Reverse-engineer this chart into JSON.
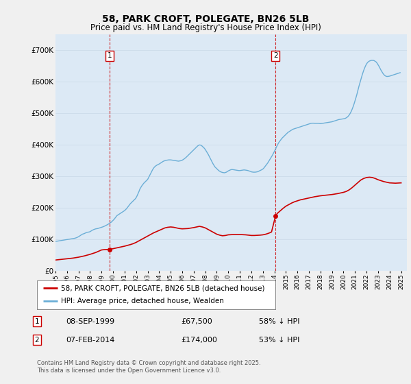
{
  "title": "58, PARK CROFT, POLEGATE, BN26 5LB",
  "subtitle": "Price paid vs. HM Land Registry's House Price Index (HPI)",
  "xlim_start": 1995.0,
  "xlim_end": 2025.5,
  "ylim_min": 0,
  "ylim_max": 750000,
  "background_color": "#f0f0f0",
  "plot_background": "#dce9f5",
  "hpi_color": "#6baed6",
  "price_color": "#cc0000",
  "annotation1": {
    "label": "1",
    "x": 1999.69,
    "y_price": 67500,
    "date": "08-SEP-1999",
    "amount": "£67,500",
    "pct": "58% ↓ HPI"
  },
  "annotation2": {
    "label": "2",
    "x": 2014.1,
    "y_price": 174000,
    "date": "07-FEB-2014",
    "amount": "£174,000",
    "pct": "53% ↓ HPI"
  },
  "legend_line1": "58, PARK CROFT, POLEGATE, BN26 5LB (detached house)",
  "legend_line2": "HPI: Average price, detached house, Wealden",
  "footer": "Contains HM Land Registry data © Crown copyright and database right 2025.\nThis data is licensed under the Open Government Licence v3.0.",
  "hpi_data_x": [
    1995.0,
    1995.083,
    1995.167,
    1995.25,
    1995.333,
    1995.417,
    1995.5,
    1995.583,
    1995.667,
    1995.75,
    1995.833,
    1995.917,
    1996.0,
    1996.083,
    1996.167,
    1996.25,
    1996.333,
    1996.417,
    1996.5,
    1996.583,
    1996.667,
    1996.75,
    1996.833,
    1996.917,
    1997.0,
    1997.083,
    1997.167,
    1997.25,
    1997.333,
    1997.417,
    1997.5,
    1997.583,
    1997.667,
    1997.75,
    1997.833,
    1997.917,
    1998.0,
    1998.083,
    1998.167,
    1998.25,
    1998.333,
    1998.417,
    1998.5,
    1998.583,
    1998.667,
    1998.75,
    1998.833,
    1998.917,
    1999.0,
    1999.083,
    1999.167,
    1999.25,
    1999.333,
    1999.417,
    1999.5,
    1999.583,
    1999.667,
    1999.75,
    1999.833,
    1999.917,
    2000.0,
    2000.083,
    2000.167,
    2000.25,
    2000.333,
    2000.417,
    2000.5,
    2000.583,
    2000.667,
    2000.75,
    2000.833,
    2000.917,
    2001.0,
    2001.083,
    2001.167,
    2001.25,
    2001.333,
    2001.417,
    2001.5,
    2001.583,
    2001.667,
    2001.75,
    2001.833,
    2001.917,
    2002.0,
    2002.083,
    2002.167,
    2002.25,
    2002.333,
    2002.417,
    2002.5,
    2002.583,
    2002.667,
    2002.75,
    2002.833,
    2002.917,
    2003.0,
    2003.083,
    2003.167,
    2003.25,
    2003.333,
    2003.417,
    2003.5,
    2003.583,
    2003.667,
    2003.75,
    2003.833,
    2003.917,
    2004.0,
    2004.083,
    2004.167,
    2004.25,
    2004.333,
    2004.417,
    2004.5,
    2004.583,
    2004.667,
    2004.75,
    2004.833,
    2004.917,
    2005.0,
    2005.083,
    2005.167,
    2005.25,
    2005.333,
    2005.417,
    2005.5,
    2005.583,
    2005.667,
    2005.75,
    2005.833,
    2005.917,
    2006.0,
    2006.083,
    2006.167,
    2006.25,
    2006.333,
    2006.417,
    2006.5,
    2006.583,
    2006.667,
    2006.75,
    2006.833,
    2006.917,
    2007.0,
    2007.083,
    2007.167,
    2007.25,
    2007.333,
    2007.417,
    2007.5,
    2007.583,
    2007.667,
    2007.75,
    2007.833,
    2007.917,
    2008.0,
    2008.083,
    2008.167,
    2008.25,
    2008.333,
    2008.417,
    2008.5,
    2008.583,
    2008.667,
    2008.75,
    2008.833,
    2008.917,
    2009.0,
    2009.083,
    2009.167,
    2009.25,
    2009.333,
    2009.417,
    2009.5,
    2009.583,
    2009.667,
    2009.75,
    2009.833,
    2009.917,
    2010.0,
    2010.083,
    2010.167,
    2010.25,
    2010.333,
    2010.417,
    2010.5,
    2010.583,
    2010.667,
    2010.75,
    2010.833,
    2010.917,
    2011.0,
    2011.083,
    2011.167,
    2011.25,
    2011.333,
    2011.417,
    2011.5,
    2011.583,
    2011.667,
    2011.75,
    2011.833,
    2011.917,
    2012.0,
    2012.083,
    2012.167,
    2012.25,
    2012.333,
    2012.417,
    2012.5,
    2012.583,
    2012.667,
    2012.75,
    2012.833,
    2012.917,
    2013.0,
    2013.083,
    2013.167,
    2013.25,
    2013.333,
    2013.417,
    2013.5,
    2013.583,
    2013.667,
    2013.75,
    2013.833,
    2013.917,
    2014.0,
    2014.083,
    2014.167,
    2014.25,
    2014.333,
    2014.417,
    2014.5,
    2014.583,
    2014.667,
    2014.75,
    2014.833,
    2014.917,
    2015.0,
    2015.083,
    2015.167,
    2015.25,
    2015.333,
    2015.417,
    2015.5,
    2015.583,
    2015.667,
    2015.75,
    2015.833,
    2015.917,
    2016.0,
    2016.083,
    2016.167,
    2016.25,
    2016.333,
    2016.417,
    2016.5,
    2016.583,
    2016.667,
    2016.75,
    2016.833,
    2016.917,
    2017.0,
    2017.083,
    2017.167,
    2017.25,
    2017.333,
    2017.417,
    2017.5,
    2017.583,
    2017.667,
    2017.75,
    2017.833,
    2017.917,
    2018.0,
    2018.083,
    2018.167,
    2018.25,
    2018.333,
    2018.417,
    2018.5,
    2018.583,
    2018.667,
    2018.75,
    2018.833,
    2018.917,
    2019.0,
    2019.083,
    2019.167,
    2019.25,
    2019.333,
    2019.417,
    2019.5,
    2019.583,
    2019.667,
    2019.75,
    2019.833,
    2019.917,
    2020.0,
    2020.083,
    2020.167,
    2020.25,
    2020.333,
    2020.417,
    2020.5,
    2020.583,
    2020.667,
    2020.75,
    2020.833,
    2020.917,
    2021.0,
    2021.083,
    2021.167,
    2021.25,
    2021.333,
    2021.417,
    2021.5,
    2021.583,
    2021.667,
    2021.75,
    2021.833,
    2021.917,
    2022.0,
    2022.083,
    2022.167,
    2022.25,
    2022.333,
    2022.417,
    2022.5,
    2022.583,
    2022.667,
    2022.75,
    2022.833,
    2022.917,
    2023.0,
    2023.083,
    2023.167,
    2023.25,
    2023.333,
    2023.417,
    2023.5,
    2023.583,
    2023.667,
    2023.75,
    2023.833,
    2023.917,
    2024.0,
    2024.083,
    2024.167,
    2024.25,
    2024.333,
    2024.417,
    2024.5,
    2024.583,
    2024.667,
    2024.75,
    2024.833,
    2024.917
  ],
  "hpi_data_y": [
    93000,
    93500,
    94000,
    94500,
    95000,
    95500,
    96000,
    96500,
    97000,
    97500,
    98000,
    98500,
    99000,
    99500,
    100000,
    100500,
    101000,
    101500,
    102000,
    102500,
    103000,
    104000,
    105000,
    106500,
    108000,
    110000,
    112000,
    114000,
    116000,
    117000,
    118000,
    119500,
    121000,
    122000,
    122500,
    123000,
    124000,
    126000,
    128000,
    129500,
    131000,
    132000,
    133000,
    133500,
    134000,
    135000,
    136000,
    137000,
    138000,
    139000,
    140000,
    141500,
    143000,
    144500,
    146000,
    148000,
    150000,
    152000,
    154000,
    157000,
    160000,
    163000,
    167000,
    171000,
    175000,
    177000,
    179000,
    181000,
    183000,
    185000,
    187000,
    189000,
    191000,
    194000,
    197000,
    201000,
    205000,
    209000,
    213000,
    216000,
    219000,
    222000,
    225000,
    228000,
    232000,
    238000,
    245000,
    252000,
    260000,
    265000,
    270000,
    274000,
    278000,
    281000,
    284000,
    287000,
    290000,
    296000,
    302000,
    308000,
    314000,
    320000,
    325000,
    329000,
    332000,
    334000,
    336000,
    337500,
    339000,
    341000,
    343000,
    345000,
    347000,
    348500,
    349500,
    350500,
    351000,
    351500,
    352000,
    352000,
    352000,
    351500,
    351000,
    350500,
    350000,
    349500,
    349000,
    348500,
    348000,
    348500,
    349000,
    350000,
    351000,
    353000,
    355000,
    357500,
    360000,
    363000,
    366000,
    369000,
    372000,
    375000,
    378000,
    381000,
    384000,
    387000,
    390000,
    393000,
    396000,
    398000,
    399500,
    399000,
    397500,
    395000,
    392000,
    389000,
    385000,
    380000,
    375000,
    370000,
    364000,
    358000,
    352000,
    346000,
    340000,
    335000,
    330000,
    327000,
    324000,
    321000,
    318000,
    316000,
    314000,
    313000,
    312000,
    311500,
    311000,
    312000,
    313000,
    315000,
    317000,
    318500,
    320000,
    321000,
    321500,
    321000,
    320500,
    320000,
    319500,
    319000,
    318500,
    318000,
    318000,
    318500,
    319000,
    319500,
    320000,
    320000,
    319500,
    319000,
    318500,
    317500,
    316500,
    315500,
    314000,
    313500,
    313000,
    313000,
    313000,
    313500,
    314000,
    315000,
    316500,
    318000,
    319500,
    321000,
    323000,
    326000,
    330000,
    334000,
    338000,
    342000,
    347000,
    352000,
    357000,
    362000,
    367000,
    373000,
    379000,
    385000,
    392000,
    398000,
    404000,
    409000,
    413000,
    417000,
    421000,
    424000,
    427000,
    430000,
    433000,
    436000,
    439000,
    441000,
    443000,
    445000,
    447000,
    449000,
    450000,
    451000,
    452000,
    453000,
    454000,
    455000,
    456000,
    457000,
    458000,
    459000,
    460000,
    461000,
    462000,
    463000,
    464000,
    465000,
    466000,
    467000,
    468000,
    468500,
    468500,
    468500,
    468000,
    468000,
    468000,
    468000,
    468000,
    467500,
    467000,
    467500,
    468000,
    468500,
    469000,
    469500,
    470000,
    470500,
    471000,
    471500,
    472000,
    472500,
    473000,
    474000,
    475000,
    476000,
    477000,
    478000,
    479000,
    480000,
    480500,
    481000,
    481500,
    482000,
    482500,
    483000,
    484000,
    486000,
    488000,
    491000,
    495000,
    500000,
    506000,
    513000,
    521000,
    530000,
    540000,
    550000,
    561000,
    573000,
    585000,
    596000,
    607000,
    617000,
    627000,
    636000,
    644000,
    651000,
    657000,
    661000,
    664000,
    666000,
    667000,
    668000,
    668000,
    668000,
    667000,
    665000,
    663000,
    659000,
    654000,
    649000,
    643000,
    637000,
    632000,
    627000,
    623000,
    620000,
    618000,
    617000,
    617000,
    617500,
    618000,
    619000,
    620000,
    621000,
    622000,
    623000,
    624000,
    625000,
    626000,
    627000,
    628000,
    629000
  ],
  "price_data_x": [
    1995.0,
    1995.25,
    1995.5,
    1995.75,
    1996.0,
    1996.25,
    1996.5,
    1996.75,
    1997.0,
    1997.25,
    1997.5,
    1997.75,
    1998.0,
    1998.25,
    1998.5,
    1998.75,
    1999.0,
    1999.25,
    1999.5,
    1999.69,
    2000.0,
    2000.25,
    2000.5,
    2000.75,
    2001.0,
    2001.25,
    2001.5,
    2001.75,
    2002.0,
    2002.25,
    2002.5,
    2002.75,
    2003.0,
    2003.25,
    2003.5,
    2003.75,
    2004.0,
    2004.25,
    2004.5,
    2004.75,
    2005.0,
    2005.25,
    2005.5,
    2005.75,
    2006.0,
    2006.25,
    2006.5,
    2006.75,
    2007.0,
    2007.25,
    2007.5,
    2007.75,
    2008.0,
    2008.25,
    2008.5,
    2008.75,
    2009.0,
    2009.25,
    2009.5,
    2009.75,
    2010.0,
    2010.25,
    2010.5,
    2010.75,
    2011.0,
    2011.25,
    2011.5,
    2011.75,
    2012.0,
    2012.25,
    2012.5,
    2012.75,
    2013.0,
    2013.25,
    2013.5,
    2013.75,
    2014.1,
    2014.25,
    2014.5,
    2014.75,
    2015.0,
    2015.25,
    2015.5,
    2015.75,
    2016.0,
    2016.25,
    2016.5,
    2016.75,
    2017.0,
    2017.25,
    2017.5,
    2017.75,
    2018.0,
    2018.25,
    2018.5,
    2018.75,
    2019.0,
    2019.25,
    2019.5,
    2019.75,
    2020.0,
    2020.25,
    2020.5,
    2020.75,
    2021.0,
    2021.25,
    2021.5,
    2021.75,
    2022.0,
    2022.25,
    2022.5,
    2022.75,
    2023.0,
    2023.25,
    2023.5,
    2023.75,
    2024.0,
    2024.25,
    2024.5,
    2024.75,
    2025.0
  ],
  "price_data_y": [
    34000,
    35000,
    36000,
    37000,
    38000,
    39000,
    40000,
    41500,
    43000,
    45000,
    47000,
    49500,
    52000,
    55000,
    58000,
    62000,
    66000,
    67000,
    67500,
    67500,
    70000,
    72000,
    74000,
    76000,
    78000,
    80500,
    83000,
    86000,
    90000,
    95000,
    100000,
    105000,
    110000,
    115000,
    120000,
    124000,
    128000,
    132000,
    136000,
    138000,
    139000,
    138000,
    136000,
    134000,
    133000,
    133500,
    134000,
    135500,
    137000,
    139000,
    141000,
    139000,
    136000,
    131000,
    126000,
    121000,
    116000,
    113000,
    111000,
    112000,
    114000,
    114500,
    115000,
    115000,
    115000,
    114500,
    114000,
    113000,
    112000,
    112000,
    112500,
    113000,
    114000,
    116000,
    119000,
    123000,
    174000,
    182000,
    190000,
    198000,
    205000,
    210000,
    215000,
    219000,
    222000,
    225000,
    227000,
    229000,
    231000,
    233000,
    235000,
    236500,
    238000,
    239000,
    240000,
    241000,
    242000,
    243500,
    245000,
    247000,
    249000,
    252000,
    257000,
    264000,
    272000,
    280000,
    288000,
    293000,
    296000,
    297000,
    296000,
    293000,
    289000,
    286000,
    283000,
    281000,
    279000,
    278500,
    278000,
    278500,
    279000
  ]
}
